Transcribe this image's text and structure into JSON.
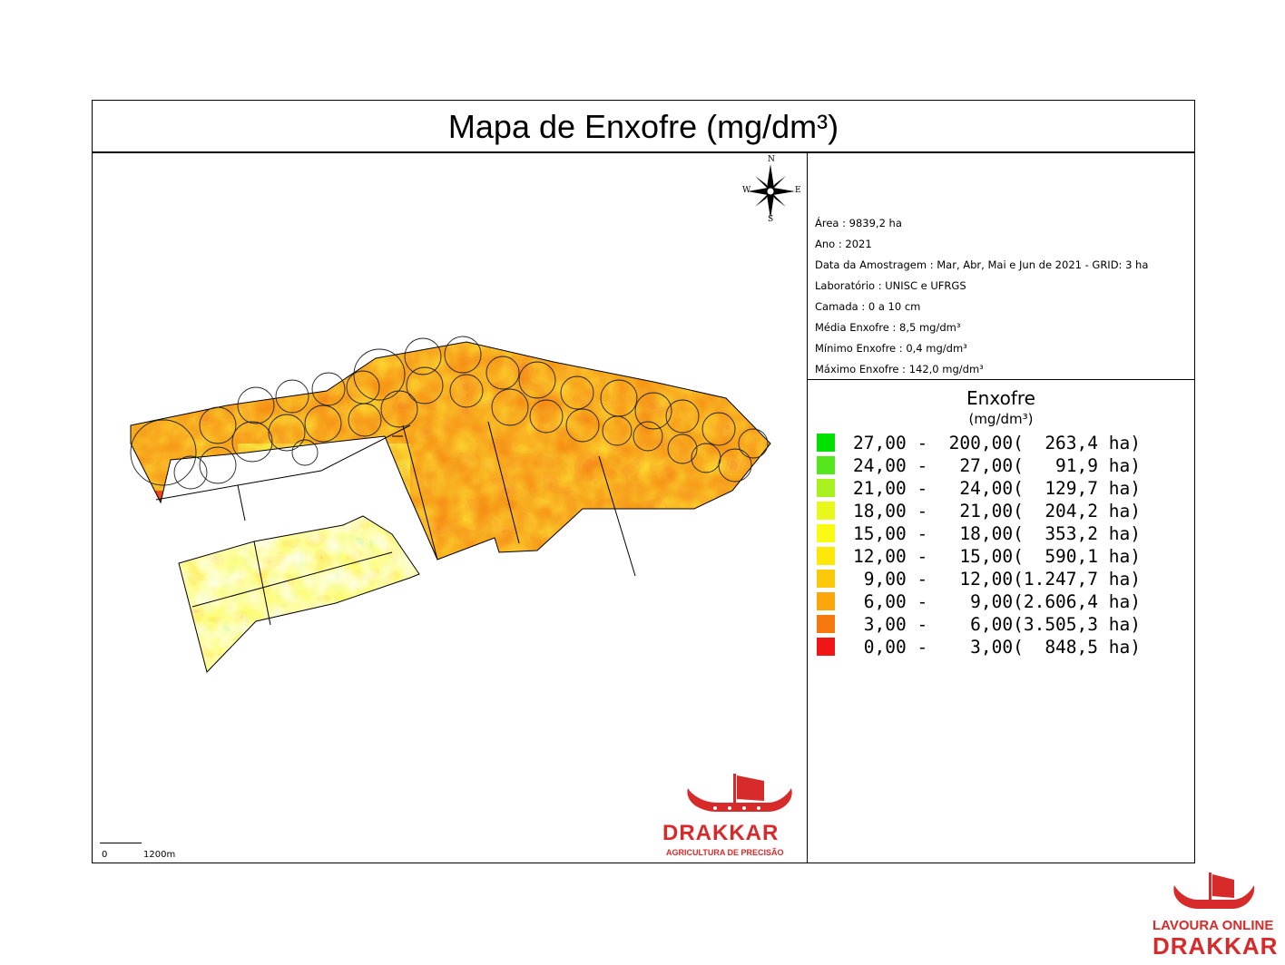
{
  "title": "Mapa de Enxofre (mg/dm³)",
  "compass": {
    "n": "N",
    "s": "S",
    "e": "E",
    "w": "W"
  },
  "scale": {
    "start": "0",
    "end": "1200m"
  },
  "info": [
    "Área : 9839,2 ha",
    "Ano : 2021",
    "Data da Amostragem : Mar, Abr, Mai e Jun de 2021  -  GRID: 3 ha",
    "Laboratório : UNISC e UFRGS",
    "Camada : 0 a 10 cm",
    "Média Enxofre : 8,5 mg/dm³",
    "Mínimo Enxofre : 0,4 mg/dm³",
    "Máximo Enxofre : 142,0 mg/dm³"
  ],
  "legend": {
    "title": "Enxofre",
    "unit": "(mg/dm³)",
    "classes": [
      {
        "text": "27,00 -  200,00(  263,4 ha)",
        "color": "#00e000"
      },
      {
        "text": "24,00 -   27,00(   91,9 ha)",
        "color": "#55e61e"
      },
      {
        "text": "21,00 -   24,00(  129,7 ha)",
        "color": "#a8f01e"
      },
      {
        "text": "18,00 -   21,00(  204,2 ha)",
        "color": "#e8f81c"
      },
      {
        "text": "15,00 -   18,00(  353,2 ha)",
        "color": "#fafa14"
      },
      {
        "text": "12,00 -   15,00(  590,1 ha)",
        "color": "#fde80a"
      },
      {
        "text": " 9,00 -   12,00(1.247,7 ha)",
        "color": "#fcc80a"
      },
      {
        "text": " 6,00 -    9,00(2.606,4 ha)",
        "color": "#fba70c"
      },
      {
        "text": " 3,00 -    6,00(3.505,3 ha)",
        "color": "#f5780f"
      },
      {
        "text": " 0,00 -    3,00(  848,5 ha)",
        "color": "#f01616"
      }
    ]
  },
  "logos": {
    "map_logo_name": "DRAKKAR",
    "map_logo_tagline": "AGRICULTURA DE PRECISÃO",
    "corner_logo_line1": "LAVOURA ONLINE",
    "corner_logo_line2": "DRAKKAR"
  }
}
